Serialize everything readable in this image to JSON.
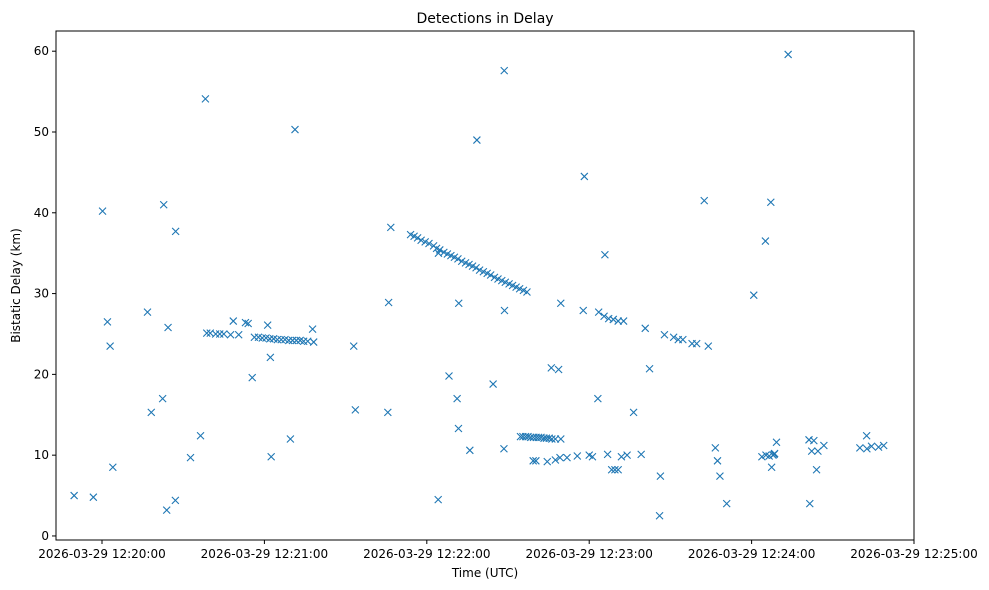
{
  "chart_data": {
    "type": "scatter",
    "title": "Detections in Delay",
    "xlabel": "Time (UTC)",
    "ylabel": "Bistatic Delay (km)",
    "marker": "x",
    "color": "#1f77b4",
    "grid": false,
    "x_unit": "seconds since 2026-03-29 12:20:00 UTC",
    "xlim": [
      -17,
      300
    ],
    "ylim": [
      -0.5,
      62.5
    ],
    "x_ticks": [
      0,
      60,
      120,
      180,
      240,
      300
    ],
    "x_tick_labels": [
      "2026-03-29 12:20:00",
      "2026-03-29 12:21:00",
      "2026-03-29 12:22:00",
      "2026-03-29 12:23:00",
      "2026-03-29 12:24:00",
      "2026-03-29 12:25:00"
    ],
    "y_ticks": [
      0,
      10,
      20,
      30,
      40,
      50,
      60
    ],
    "y_tick_labels": [
      "0",
      "10",
      "20",
      "30",
      "40",
      "50",
      "60"
    ],
    "series": [
      {
        "name": "Detections",
        "points": [
          [
            -10.3,
            5.0
          ],
          [
            -3.2,
            4.8
          ],
          [
            0.2,
            40.2
          ],
          [
            2,
            26.5
          ],
          [
            3,
            23.5
          ],
          [
            4,
            8.5
          ],
          [
            16.8,
            27.7
          ],
          [
            18.2,
            15.3
          ],
          [
            22.4,
            17.0
          ],
          [
            22.8,
            41.0
          ],
          [
            24.4,
            25.8
          ],
          [
            23.9,
            3.2
          ],
          [
            27.1,
            4.4
          ],
          [
            27.2,
            37.7
          ],
          [
            32.7,
            9.7
          ],
          [
            38.2,
            54.1
          ],
          [
            38.7,
            25.1
          ],
          [
            36.4,
            12.4
          ],
          [
            40,
            25.1
          ],
          [
            42,
            25.0
          ],
          [
            43.5,
            25.0
          ],
          [
            45,
            25.0
          ],
          [
            47.5,
            24.9
          ],
          [
            48.5,
            26.6
          ],
          [
            50.5,
            24.9
          ],
          [
            53,
            26.4
          ],
          [
            54,
            26.3
          ],
          [
            55.5,
            19.6
          ],
          [
            56.3,
            24.6
          ],
          [
            57.8,
            24.6
          ],
          [
            59.2,
            24.5
          ],
          [
            60.6,
            24.5
          ],
          [
            61.2,
            26.1
          ],
          [
            62,
            24.4
          ],
          [
            63.4,
            24.4
          ],
          [
            64.8,
            24.3
          ],
          [
            66.2,
            24.3
          ],
          [
            67.6,
            24.3
          ],
          [
            69,
            24.2
          ],
          [
            70.4,
            24.2
          ],
          [
            71.8,
            24.2
          ],
          [
            73.2,
            24.2
          ],
          [
            74.5,
            24.1
          ],
          [
            76,
            24.1
          ],
          [
            62.2,
            22.1
          ],
          [
            62.5,
            9.8
          ],
          [
            69.6,
            12.0
          ],
          [
            71.3,
            50.3
          ],
          [
            77.8,
            25.6
          ],
          [
            78.2,
            24.0
          ],
          [
            93,
            23.5
          ],
          [
            93.6,
            15.6
          ],
          [
            105.6,
            15.3
          ],
          [
            105.9,
            28.9
          ],
          [
            106.7,
            38.2
          ],
          [
            114,
            37.3
          ],
          [
            115.3,
            37.1
          ],
          [
            116.6,
            36.9
          ],
          [
            117.9,
            36.6
          ],
          [
            119.4,
            36.4
          ],
          [
            120.8,
            36.2
          ],
          [
            122.5,
            35.9
          ],
          [
            123.6,
            35.6
          ],
          [
            124.8,
            35.4
          ],
          [
            126.3,
            35.1
          ],
          [
            124.3,
            35.0
          ],
          [
            127.6,
            34.9
          ],
          [
            128.9,
            34.7
          ],
          [
            130.2,
            34.5
          ],
          [
            131.5,
            34.3
          ],
          [
            132.9,
            34.0
          ],
          [
            134.3,
            33.8
          ],
          [
            135.6,
            33.6
          ],
          [
            136.9,
            33.4
          ],
          [
            138.2,
            33.2
          ],
          [
            139.5,
            32.9
          ],
          [
            140.9,
            32.7
          ],
          [
            142.3,
            32.5
          ],
          [
            143.6,
            32.3
          ],
          [
            145,
            32.0
          ],
          [
            146.3,
            31.8
          ],
          [
            147.7,
            31.6
          ],
          [
            149,
            31.4
          ],
          [
            150.4,
            31.2
          ],
          [
            151.7,
            31.0
          ],
          [
            153,
            30.8
          ],
          [
            154.3,
            30.6
          ],
          [
            155.7,
            30.4
          ],
          [
            157,
            30.2
          ],
          [
            148.7,
            27.9
          ],
          [
            124.2,
            4.5
          ],
          [
            128.2,
            19.8
          ],
          [
            131.2,
            17.0
          ],
          [
            131.7,
            13.3
          ],
          [
            131.8,
            28.8
          ],
          [
            135.9,
            10.6
          ],
          [
            138.5,
            49.0
          ],
          [
            144.5,
            18.8
          ],
          [
            148.5,
            10.8
          ],
          [
            148.6,
            57.6
          ],
          [
            154.6,
            12.3
          ],
          [
            155.5,
            12.3
          ],
          [
            156.5,
            12.3
          ],
          [
            157.4,
            12.3
          ],
          [
            158.4,
            12.2
          ],
          [
            159.4,
            12.2
          ],
          [
            160.4,
            12.2
          ],
          [
            161.3,
            12.2
          ],
          [
            162.2,
            12.2
          ],
          [
            163.3,
            12.1
          ],
          [
            164.2,
            12.1
          ],
          [
            165.2,
            12.1
          ],
          [
            166.2,
            12.0
          ],
          [
            167.5,
            12.0
          ],
          [
            169.5,
            12.0
          ],
          [
            159.3,
            9.3
          ],
          [
            160.3,
            9.3
          ],
          [
            164.5,
            9.2
          ],
          [
            167.5,
            9.4
          ],
          [
            169.2,
            9.7
          ],
          [
            166,
            20.8
          ],
          [
            168.7,
            20.6
          ],
          [
            171.8,
            9.7
          ],
          [
            169.5,
            28.8
          ],
          [
            175.6,
            9.9
          ],
          [
            180,
            10.0
          ],
          [
            178.2,
            44.5
          ],
          [
            177.8,
            27.9
          ],
          [
            181.2,
            9.8
          ],
          [
            183.5,
            27.7
          ],
          [
            185.5,
            27.2
          ],
          [
            187.2,
            26.9
          ],
          [
            188.9,
            26.8
          ],
          [
            190.7,
            26.6
          ],
          [
            183.2,
            17.0
          ],
          [
            185.8,
            34.8
          ],
          [
            186.8,
            10.1
          ],
          [
            188.3,
            8.2
          ],
          [
            189.5,
            8.2
          ],
          [
            190.7,
            8.2
          ],
          [
            191.9,
            9.8
          ],
          [
            194,
            10.0
          ],
          [
            192.7,
            26.6
          ],
          [
            196.4,
            15.3
          ],
          [
            199.2,
            10.1
          ],
          [
            200.7,
            25.7
          ],
          [
            202.3,
            20.7
          ],
          [
            206.3,
            7.4
          ],
          [
            206,
            2.5
          ],
          [
            207.8,
            24.9
          ],
          [
            211.2,
            24.6
          ],
          [
            212.9,
            24.3
          ],
          [
            214.6,
            24.3
          ],
          [
            218,
            23.8
          ],
          [
            219.7,
            23.8
          ],
          [
            222.5,
            41.5
          ],
          [
            224,
            23.5
          ],
          [
            226.6,
            10.9
          ],
          [
            227.4,
            9.3
          ],
          [
            228.3,
            7.4
          ],
          [
            230.8,
            4.0
          ],
          [
            240.8,
            29.8
          ],
          [
            243.8,
            9.8
          ],
          [
            245.1,
            36.5
          ],
          [
            245.3,
            10.0
          ],
          [
            246.5,
            9.9
          ],
          [
            247.1,
            41.3
          ],
          [
            247.4,
            8.5
          ],
          [
            247.9,
            10.0
          ],
          [
            248.3,
            10.1
          ],
          [
            248.5,
            10.2
          ],
          [
            249.2,
            11.6
          ],
          [
            253.5,
            59.6
          ],
          [
            261.2,
            11.9
          ],
          [
            261.5,
            4.0
          ],
          [
            262.2,
            10.5
          ],
          [
            263,
            11.8
          ],
          [
            264.5,
            10.5
          ],
          [
            264,
            8.2
          ],
          [
            266.7,
            11.2
          ],
          [
            282.5,
            12.4
          ],
          [
            282.6,
            10.8
          ],
          [
            284.3,
            11.1
          ],
          [
            286.9,
            11.0
          ],
          [
            288.8,
            11.2
          ],
          [
            280,
            10.9
          ]
        ]
      }
    ]
  }
}
